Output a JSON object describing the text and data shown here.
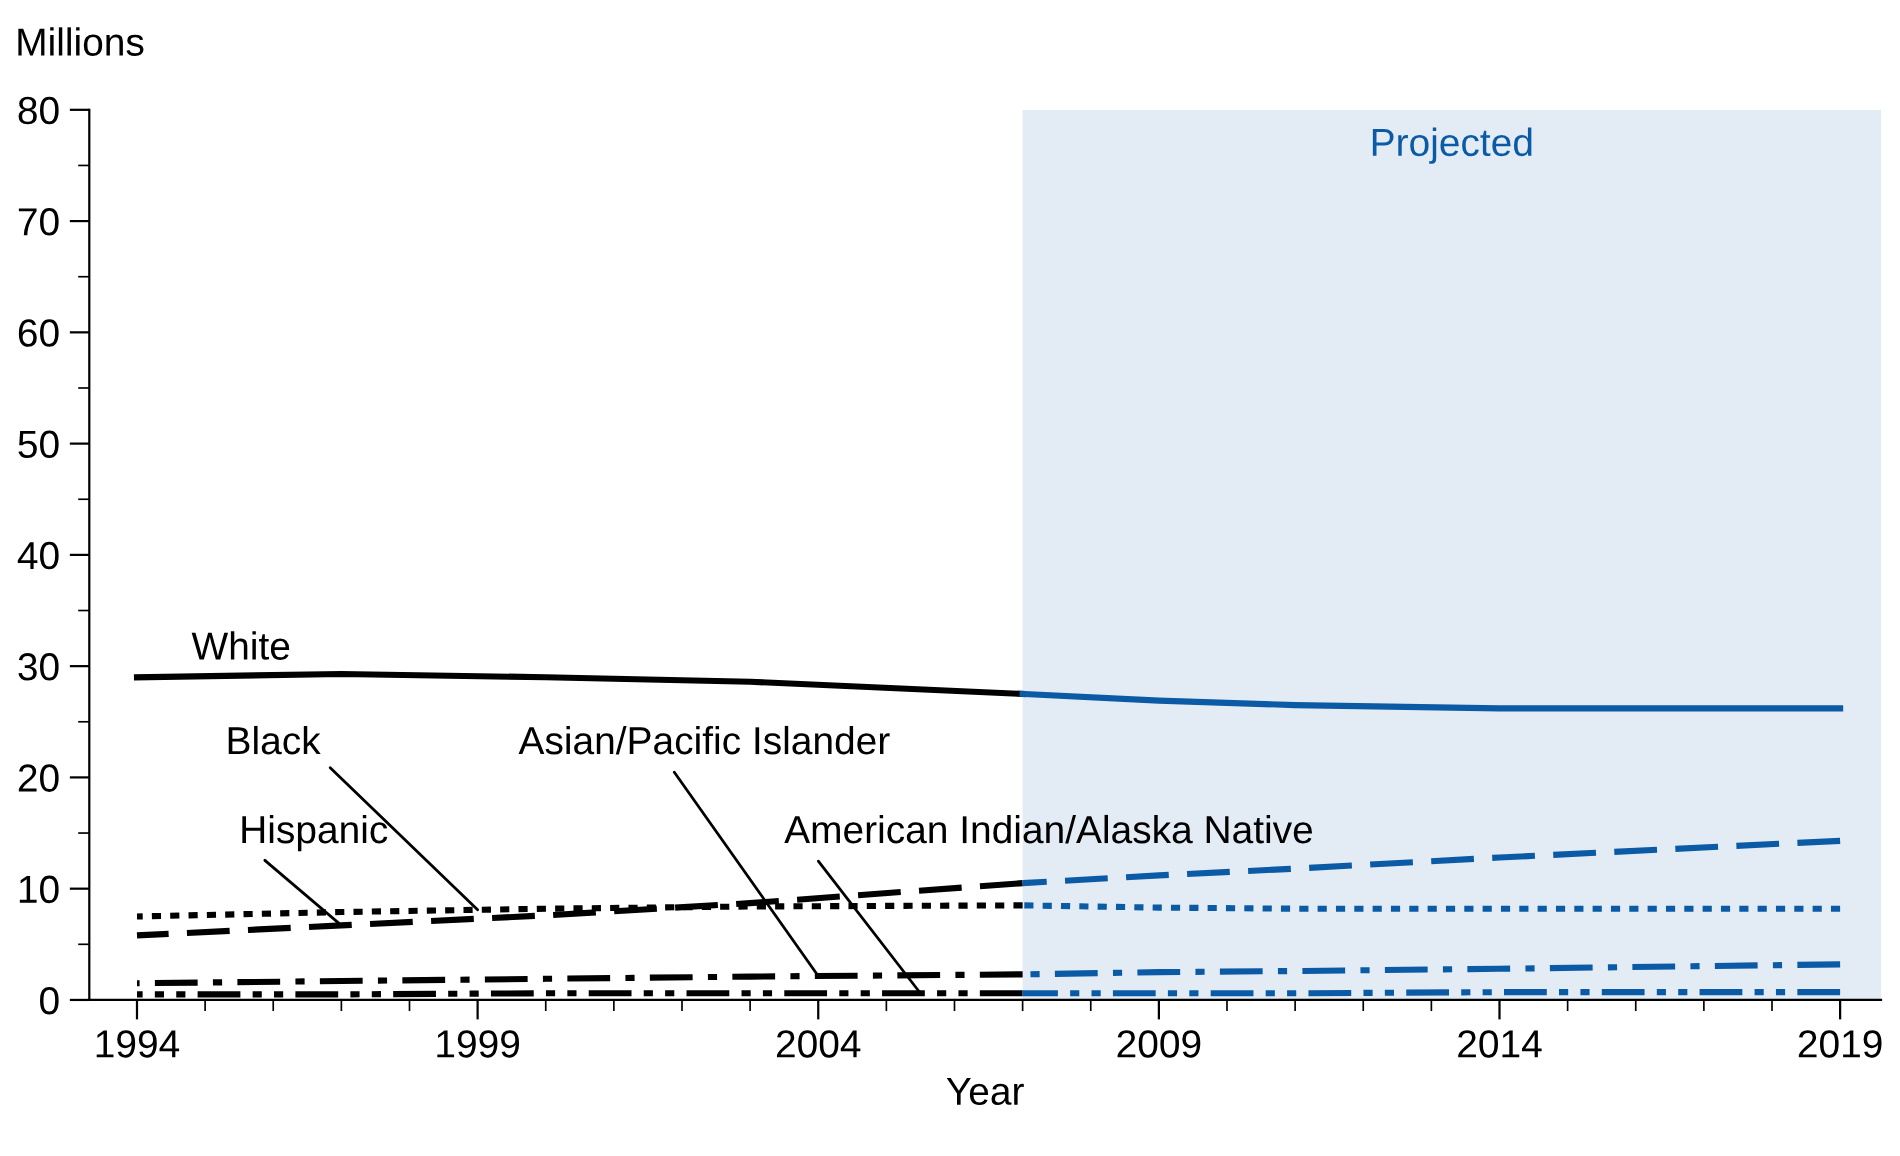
{
  "chart_data": {
    "type": "line",
    "xlabel": "Year",
    "ylabel": "Millions",
    "x": [
      1994,
      1997,
      2000,
      2003,
      2007,
      2009,
      2011,
      2014,
      2019
    ],
    "series": [
      {
        "name": "White",
        "color": "#000000",
        "line_style": "solid",
        "values": [
          29,
          29.3,
          29,
          28.6,
          27.5,
          null,
          null,
          null,
          null
        ]
      },
      {
        "color": "#0b5aa5",
        "line_style": "solid",
        "values": [
          null,
          null,
          null,
          null,
          27.5,
          26.9,
          26.5,
          26.2,
          26.2
        ]
      },
      {
        "name": "Black",
        "color": "#000000",
        "line_style": "dotted",
        "values": [
          7.5,
          7.9,
          8.2,
          8.4,
          8.5,
          null,
          null,
          null,
          null
        ]
      },
      {
        "color": "#0b5aa5",
        "line_style": "dotted",
        "values": [
          null,
          null,
          null,
          null,
          8.5,
          8.3,
          8.2,
          8.2,
          8.2
        ]
      },
      {
        "name": "Hispanic",
        "color": "#000000",
        "line_style": "dashed",
        "values": [
          5.8,
          6.7,
          7.6,
          8.7,
          10.5,
          null,
          null,
          null,
          null
        ]
      },
      {
        "color": "#0b5aa5",
        "line_style": "dashed",
        "values": [
          null,
          null,
          null,
          null,
          10.5,
          11.2,
          11.8,
          12.8,
          14.3
        ]
      },
      {
        "name": "Asian/Pacific Islander",
        "color": "#000000",
        "line_style": "dashdot",
        "values": [
          1.5,
          1.7,
          1.9,
          2.1,
          2.3,
          null,
          null,
          null,
          null
        ]
      },
      {
        "color": "#0b5aa5",
        "line_style": "dashdot",
        "values": [
          null,
          null,
          null,
          null,
          2.3,
          2.5,
          2.6,
          2.8,
          3.2
        ]
      },
      {
        "name": "American Indian/Alaska Native",
        "color": "#000000",
        "line_style": "dashdotdot",
        "values": [
          0.5,
          0.5,
          0.6,
          0.6,
          0.6,
          null,
          null,
          null,
          null
        ]
      },
      {
        "color": "#0b5aa5",
        "line_style": "dashdotdot",
        "values": [
          null,
          null,
          null,
          null,
          0.6,
          0.6,
          0.6,
          0.7,
          0.7
        ]
      }
    ],
    "xlim": [
      1993.3,
      2019.6
    ],
    "ylim": [
      0,
      80
    ],
    "xticks": [
      1994,
      {
        "value": 1995,
        "label": null
      },
      {
        "value": 1996,
        "label": null
      },
      {
        "value": 1997,
        "label": null
      },
      {
        "value": 1998,
        "label": null
      },
      1999,
      {
        "value": 2000,
        "label": null
      },
      {
        "value": 2001,
        "label": null
      },
      {
        "value": 2002,
        "label": null
      },
      {
        "value": 2003,
        "label": null
      },
      2004,
      {
        "value": 2005,
        "label": null
      },
      {
        "value": 2006,
        "label": null
      },
      {
        "value": 2007,
        "label": null
      },
      {
        "value": 2008,
        "label": null
      },
      2009,
      {
        "value": 2010,
        "label": null
      },
      {
        "value": 2011,
        "label": null
      },
      {
        "value": 2012,
        "label": null
      },
      {
        "value": 2013,
        "label": null
      },
      2014,
      {
        "value": 2015,
        "label": null
      },
      {
        "value": 2016,
        "label": null
      },
      {
        "value": 2017,
        "label": null
      },
      {
        "value": 2018,
        "label": null
      },
      2019
    ],
    "yticks": [
      0,
      {
        "value": 5,
        "label": null
      },
      10,
      {
        "value": 15,
        "label": null
      },
      20,
      {
        "value": 25,
        "label": null
      },
      30,
      {
        "value": 35,
        "label": null
      },
      40,
      {
        "value": 45,
        "label": null
      },
      50,
      {
        "value": 55,
        "label": null
      },
      60,
      {
        "value": 65,
        "label": null
      },
      70,
      {
        "value": 75,
        "label": null
      },
      80
    ],
    "bands": [
      {
        "axis": "x",
        "from": 2007,
        "to": 2019.6,
        "label": "Projected",
        "color": "#e3ecf5"
      }
    ],
    "grid": false,
    "legend": false
  }
}
